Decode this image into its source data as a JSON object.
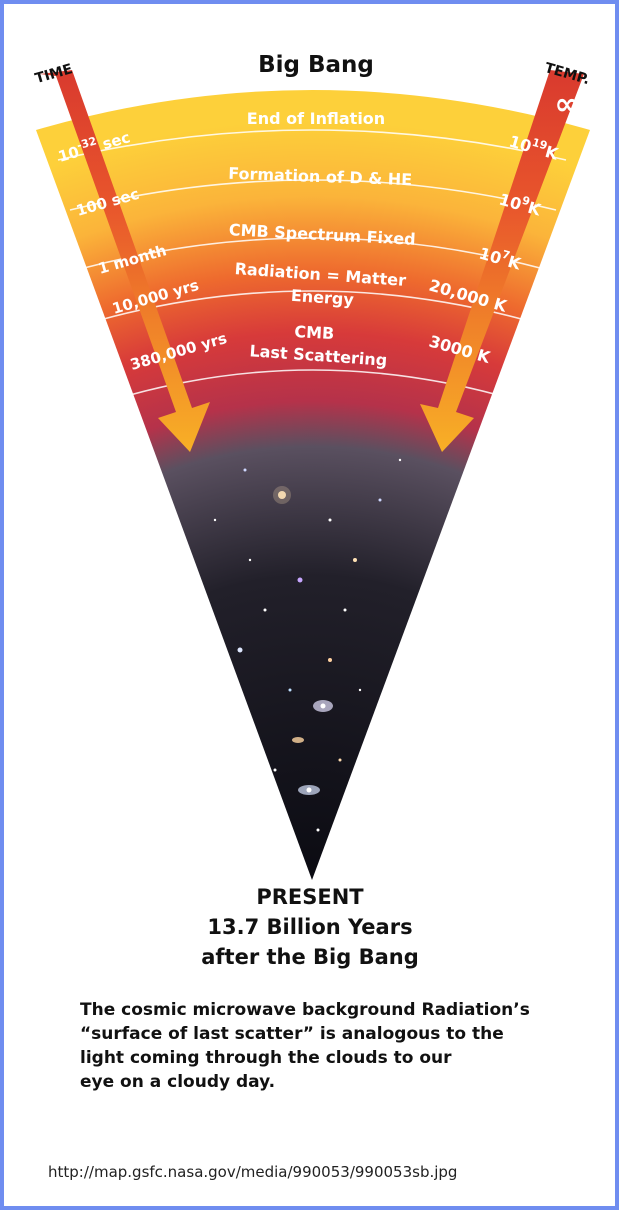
{
  "title": "Big Bang",
  "time_axis": {
    "label": "TIME",
    "start": "0"
  },
  "temp_axis": {
    "label": "TEMP.",
    "start": "∞"
  },
  "epochs": [
    {
      "event": "End of Inflation",
      "time": "10",
      "time_sup": "-32",
      "time_unit": " sec",
      "temp": "10",
      "temp_sup": "19",
      "temp_unit": "K"
    },
    {
      "event": "Formation of D & HE",
      "time": "100 sec",
      "temp": "10",
      "temp_sup": "9",
      "temp_unit": "K"
    },
    {
      "event": "CMB Spectrum Fixed",
      "time": "1 month",
      "temp": "10",
      "temp_sup": "7",
      "temp_unit": "K"
    },
    {
      "event": "Radiation = Matter",
      "event_line2": "Energy",
      "time": "10,000 yrs",
      "temp": "20,000 K"
    },
    {
      "event": "CMB",
      "event_line2": "Last Scattering",
      "time": "380,000 yrs",
      "temp": "3000 K"
    }
  ],
  "present": {
    "line1": "PRESENT",
    "line2": "13.7 Billion Years",
    "line3": "after the Big Bang"
  },
  "caption": [
    "The cosmic microwave background Radiation’s",
    "“surface of last scatter” is analogous to the",
    "light coming through the clouds to our",
    "eye on a cloudy day."
  ],
  "source_url": "http://map.gsfc.nasa.gov/media/990053/990053sb.jpg",
  "colors": {
    "inflation": "#fdd03a",
    "mid": "#ee6a2e",
    "deep": "#d22d3c",
    "dark_universe": "#1a1a1a",
    "arrow": "#f7a51c",
    "border": "#6f8df0"
  }
}
